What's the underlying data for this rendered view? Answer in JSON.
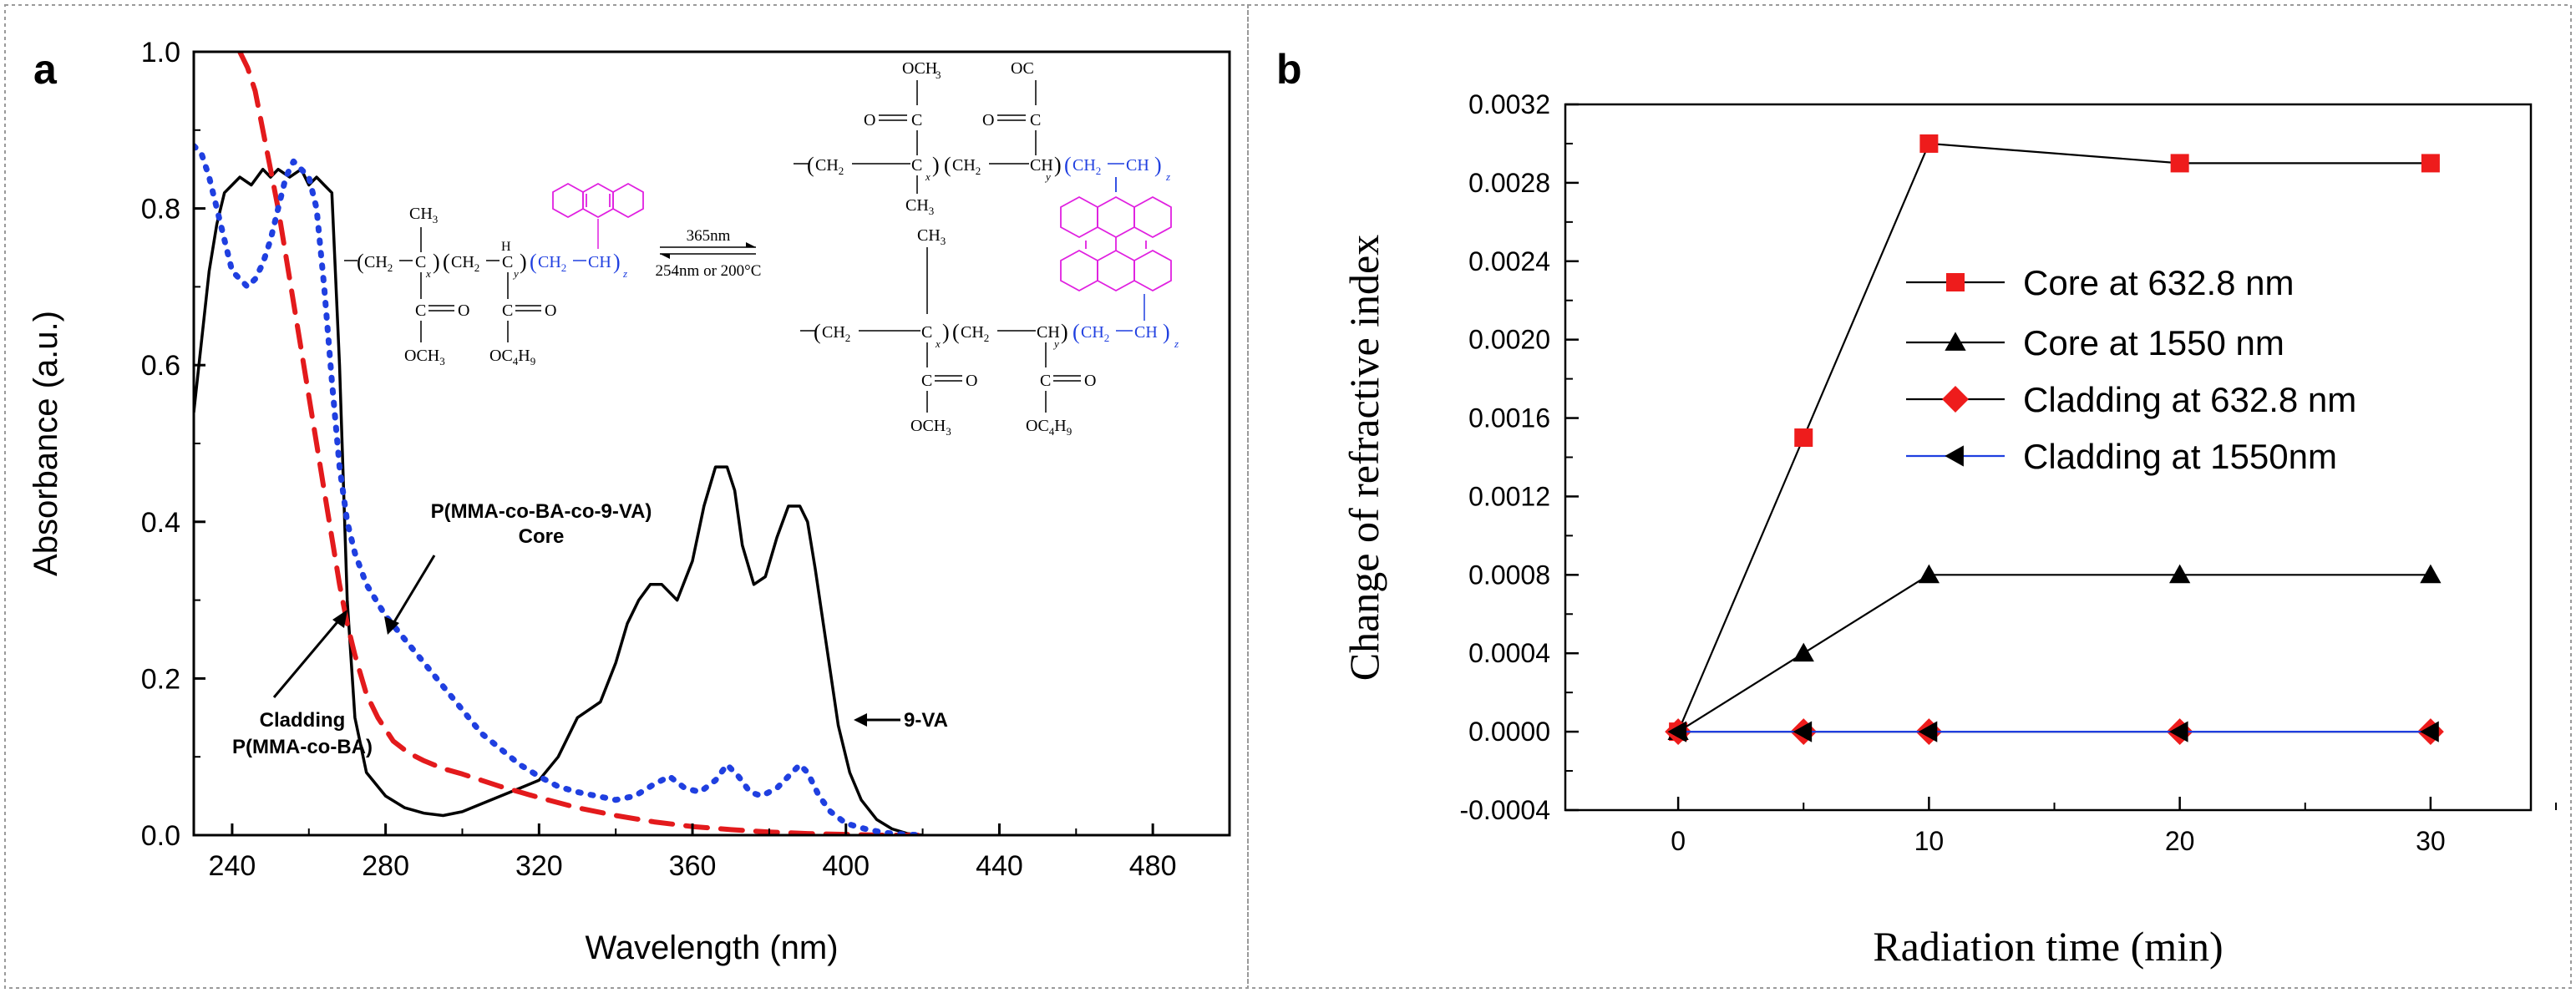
{
  "chart_data": [
    {
      "panel": "a",
      "type": "line",
      "xlabel": "Wavelength (nm)",
      "ylabel": "Absorbance (a.u.)",
      "xlim": [
        230,
        500
      ],
      "ylim": [
        0.0,
        1.0
      ],
      "xticks": [
        "240",
        "280",
        "320",
        "360",
        "400",
        "440",
        "480"
      ],
      "yticks": [
        "0.0",
        "0.2",
        "0.4",
        "0.6",
        "0.8",
        "1.0"
      ],
      "series": [
        {
          "name": "9-VA",
          "style": "solid",
          "color": "#000000",
          "x": [
            230,
            232,
            234,
            236,
            238,
            240,
            242,
            245,
            248,
            250,
            252,
            255,
            258,
            260,
            262,
            264,
            266,
            268,
            270,
            272,
            275,
            280,
            285,
            290,
            295,
            300,
            305,
            310,
            315,
            320,
            325,
            330,
            333,
            336,
            340,
            343,
            346,
            349,
            352,
            356,
            360,
            363,
            366,
            369,
            371,
            373,
            376,
            379,
            382,
            385,
            388,
            390,
            392,
            395,
            398,
            401,
            404,
            408,
            412,
            416,
            420
          ],
          "y": [
            0.54,
            0.63,
            0.72,
            0.78,
            0.82,
            0.83,
            0.84,
            0.83,
            0.85,
            0.84,
            0.85,
            0.84,
            0.85,
            0.83,
            0.84,
            0.83,
            0.82,
            0.6,
            0.3,
            0.15,
            0.08,
            0.05,
            0.035,
            0.028,
            0.025,
            0.03,
            0.04,
            0.05,
            0.06,
            0.07,
            0.1,
            0.15,
            0.16,
            0.17,
            0.22,
            0.27,
            0.3,
            0.32,
            0.32,
            0.3,
            0.35,
            0.42,
            0.47,
            0.47,
            0.44,
            0.37,
            0.32,
            0.33,
            0.38,
            0.42,
            0.42,
            0.4,
            0.34,
            0.24,
            0.14,
            0.08,
            0.045,
            0.02,
            0.008,
            0.002,
            0.0
          ]
        },
        {
          "name": "Cladding P(MMA-co-BA)",
          "style": "dashed",
          "color": "#e31a1c",
          "x": [
            242,
            244,
            246,
            248,
            250,
            252,
            254,
            256,
            258,
            260,
            262,
            264,
            266,
            268,
            270,
            272,
            275,
            278,
            282,
            286,
            290,
            295,
            300,
            305,
            310,
            315,
            320,
            330,
            340,
            350,
            360,
            370,
            380,
            390,
            400,
            410,
            420
          ],
          "y": [
            1.0,
            0.98,
            0.95,
            0.9,
            0.85,
            0.8,
            0.74,
            0.68,
            0.62,
            0.56,
            0.5,
            0.44,
            0.38,
            0.32,
            0.27,
            0.23,
            0.18,
            0.15,
            0.12,
            0.105,
            0.095,
            0.085,
            0.078,
            0.07,
            0.062,
            0.055,
            0.048,
            0.035,
            0.025,
            0.017,
            0.011,
            0.007,
            0.004,
            0.002,
            0.001,
            0.0,
            0.0
          ]
        },
        {
          "name": "P(MMA-co-BA-co-9-VA) Core",
          "style": "dotted",
          "color": "#1f3fe0",
          "x": [
            230,
            232,
            234,
            236,
            238,
            240,
            242,
            244,
            246,
            248,
            250,
            252,
            254,
            256,
            258,
            260,
            262,
            264,
            266,
            268,
            270,
            272,
            275,
            280,
            285,
            290,
            295,
            300,
            305,
            310,
            315,
            320,
            325,
            330,
            335,
            340,
            345,
            350,
            354,
            358,
            362,
            366,
            369,
            372,
            375,
            378,
            382,
            386,
            388,
            390,
            393,
            396,
            400,
            405,
            410,
            415,
            420
          ],
          "y": [
            0.88,
            0.87,
            0.84,
            0.8,
            0.76,
            0.72,
            0.71,
            0.7,
            0.71,
            0.73,
            0.76,
            0.8,
            0.84,
            0.86,
            0.85,
            0.84,
            0.8,
            0.7,
            0.58,
            0.47,
            0.4,
            0.36,
            0.32,
            0.28,
            0.25,
            0.22,
            0.19,
            0.16,
            0.13,
            0.11,
            0.09,
            0.075,
            0.062,
            0.055,
            0.05,
            0.045,
            0.05,
            0.065,
            0.075,
            0.06,
            0.055,
            0.07,
            0.09,
            0.075,
            0.055,
            0.05,
            0.06,
            0.08,
            0.09,
            0.08,
            0.05,
            0.03,
            0.015,
            0.008,
            0.003,
            0.001,
            0.0
          ]
        }
      ],
      "annotations": {
        "core": [
          "P(MMA-co-BA-co-9-VA)",
          "Core"
        ],
        "cladding": [
          "Cladding",
          "P(MMA-co-BA)"
        ],
        "va": "9-VA"
      },
      "scheme": {
        "forward": "365nm",
        "backward": "254nm or 200°C",
        "ch2": "CH",
        "ch2_sub": "2",
        "ch": "CH",
        "ch3": "CH",
        "ch3_sub": "3",
        "c": "C",
        "h": "H",
        "o": "O",
        "och3": "OCH",
        "och3_sub": "3",
        "oc4h9": "OC",
        "oc4h9_sub1": "4",
        "oc4h9_mid": "H",
        "oc4h9_sub2": "9",
        "x": "x",
        "y": "y",
        "z": "z"
      }
    },
    {
      "panel": "b",
      "type": "line",
      "xlabel": "Radiation time (min)",
      "ylabel": "Change of refractive index",
      "xlim": [
        -4.5,
        34
      ],
      "ylim": [
        -0.0004,
        0.0032
      ],
      "xticks": [
        "0",
        "10",
        "20",
        "30"
      ],
      "yticks": [
        "-0.0004",
        "0.0000",
        "0.0004",
        "0.0008",
        "0.0012",
        "0.0016",
        "0.0020",
        "0.0024",
        "0.0028",
        "0.0032"
      ],
      "series": [
        {
          "name": "Core at 632.8 nm",
          "marker": "square",
          "color": "#000000",
          "marker_color": "#ee1c1c",
          "x": [
            0,
            5,
            10,
            20,
            30
          ],
          "y": [
            0.0,
            0.0015,
            0.003,
            0.0029,
            0.0029
          ]
        },
        {
          "name": "Core at 1550 nm",
          "marker": "triangle",
          "color": "#000000",
          "marker_color": "#000000",
          "x": [
            0,
            5,
            10,
            20,
            30
          ],
          "y": [
            0.0,
            0.0004,
            0.0008,
            0.0008,
            0.0008
          ]
        },
        {
          "name": "Cladding at 632.8 nm",
          "marker": "diamond",
          "color": "#000000",
          "marker_color": "#ee1c1c",
          "x": [
            0,
            5,
            10,
            20,
            30
          ],
          "y": [
            0.0,
            0.0,
            0.0,
            0.0,
            0.0
          ]
        },
        {
          "name": "Cladding at 1550nm",
          "marker": "left-triangle",
          "color": "#1f3fe0",
          "marker_color": "#000000",
          "x": [
            0,
            5,
            10,
            20,
            30
          ],
          "y": [
            0.0,
            0.0,
            0.0,
            0.0,
            0.0
          ]
        }
      ]
    }
  ],
  "panel_labels": [
    "a",
    "b"
  ]
}
